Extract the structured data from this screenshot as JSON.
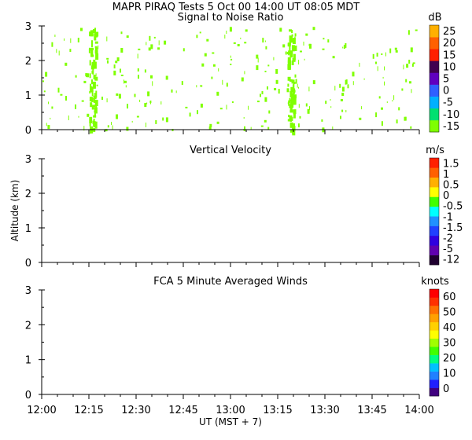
{
  "header": {
    "title": "MAPR PIRAQ Tests  5 Oct 00  14:00 UT  08:05  MDT"
  },
  "chart_data": [
    {
      "type": "heatmap",
      "title": "Signal to Noise Ratio",
      "units": "dB",
      "ylabel": "",
      "ylim": [
        0,
        3
      ],
      "yticks": [
        "0",
        "1",
        "2",
        "3"
      ],
      "colorbar": {
        "labels": [
          "-15",
          "-10",
          "-5",
          "0",
          "5",
          "10",
          "15",
          "20",
          "25"
        ],
        "colors": [
          "#7fff00",
          "#00e070",
          "#00b0ff",
          "#3060ff",
          "#6000c0",
          "#400050",
          "#ff2000",
          "#ff6000",
          "#ffb000"
        ]
      },
      "description_values": "sparse low-SNR returns (about -15 dB) scattered across 0-3 km; dense vertical streaks near 12:16 and 13:19",
      "streaks_time_hh_mm": [
        "12:16",
        "13:19"
      ],
      "speckle_value_db": -15
    },
    {
      "type": "heatmap",
      "title": "Vertical Velocity",
      "units": "m/s",
      "ylabel": "Altitude (km)",
      "ylim": [
        0,
        3
      ],
      "yticks": [
        "0",
        "1",
        "2",
        "3"
      ],
      "colorbar": {
        "labels": [
          "-12",
          "-5",
          "-2",
          "-1.5",
          "-1",
          "-0.5",
          "0",
          "0.5",
          "1",
          "1.5"
        ],
        "colors": [
          "#200030",
          "#6000b0",
          "#3000e0",
          "#2040ff",
          "#2090ff",
          "#00ffff",
          "#40ff00",
          "#ffff00",
          "#ffb000",
          "#ff6000",
          "#ff2000"
        ]
      },
      "values": []
    },
    {
      "type": "heatmap",
      "title": "FCA 5 Minute Averaged Winds",
      "units": "knots",
      "ylabel": "",
      "ylim": [
        0,
        3
      ],
      "yticks": [
        "0",
        "1",
        "2",
        "3"
      ],
      "colorbar": {
        "labels": [
          "0",
          "10",
          "20",
          "30",
          "40",
          "50",
          "60"
        ],
        "colors": [
          "#400080",
          "#2020ff",
          "#2080ff",
          "#00c0ff",
          "#00ff80",
          "#40ff00",
          "#a0ff00",
          "#ffff00",
          "#ffd000",
          "#ffa000",
          "#ff7000",
          "#ff3000",
          "#ff0000"
        ]
      },
      "values": []
    }
  ],
  "x_axis": {
    "tick_labels": [
      "12:00",
      "12:15",
      "12:30",
      "12:45",
      "13:00",
      "13:15",
      "13:30",
      "13:45",
      "14:00"
    ],
    "xlabel": "UT  (MST + 7)",
    "xlim_minutes": [
      0,
      120
    ]
  }
}
